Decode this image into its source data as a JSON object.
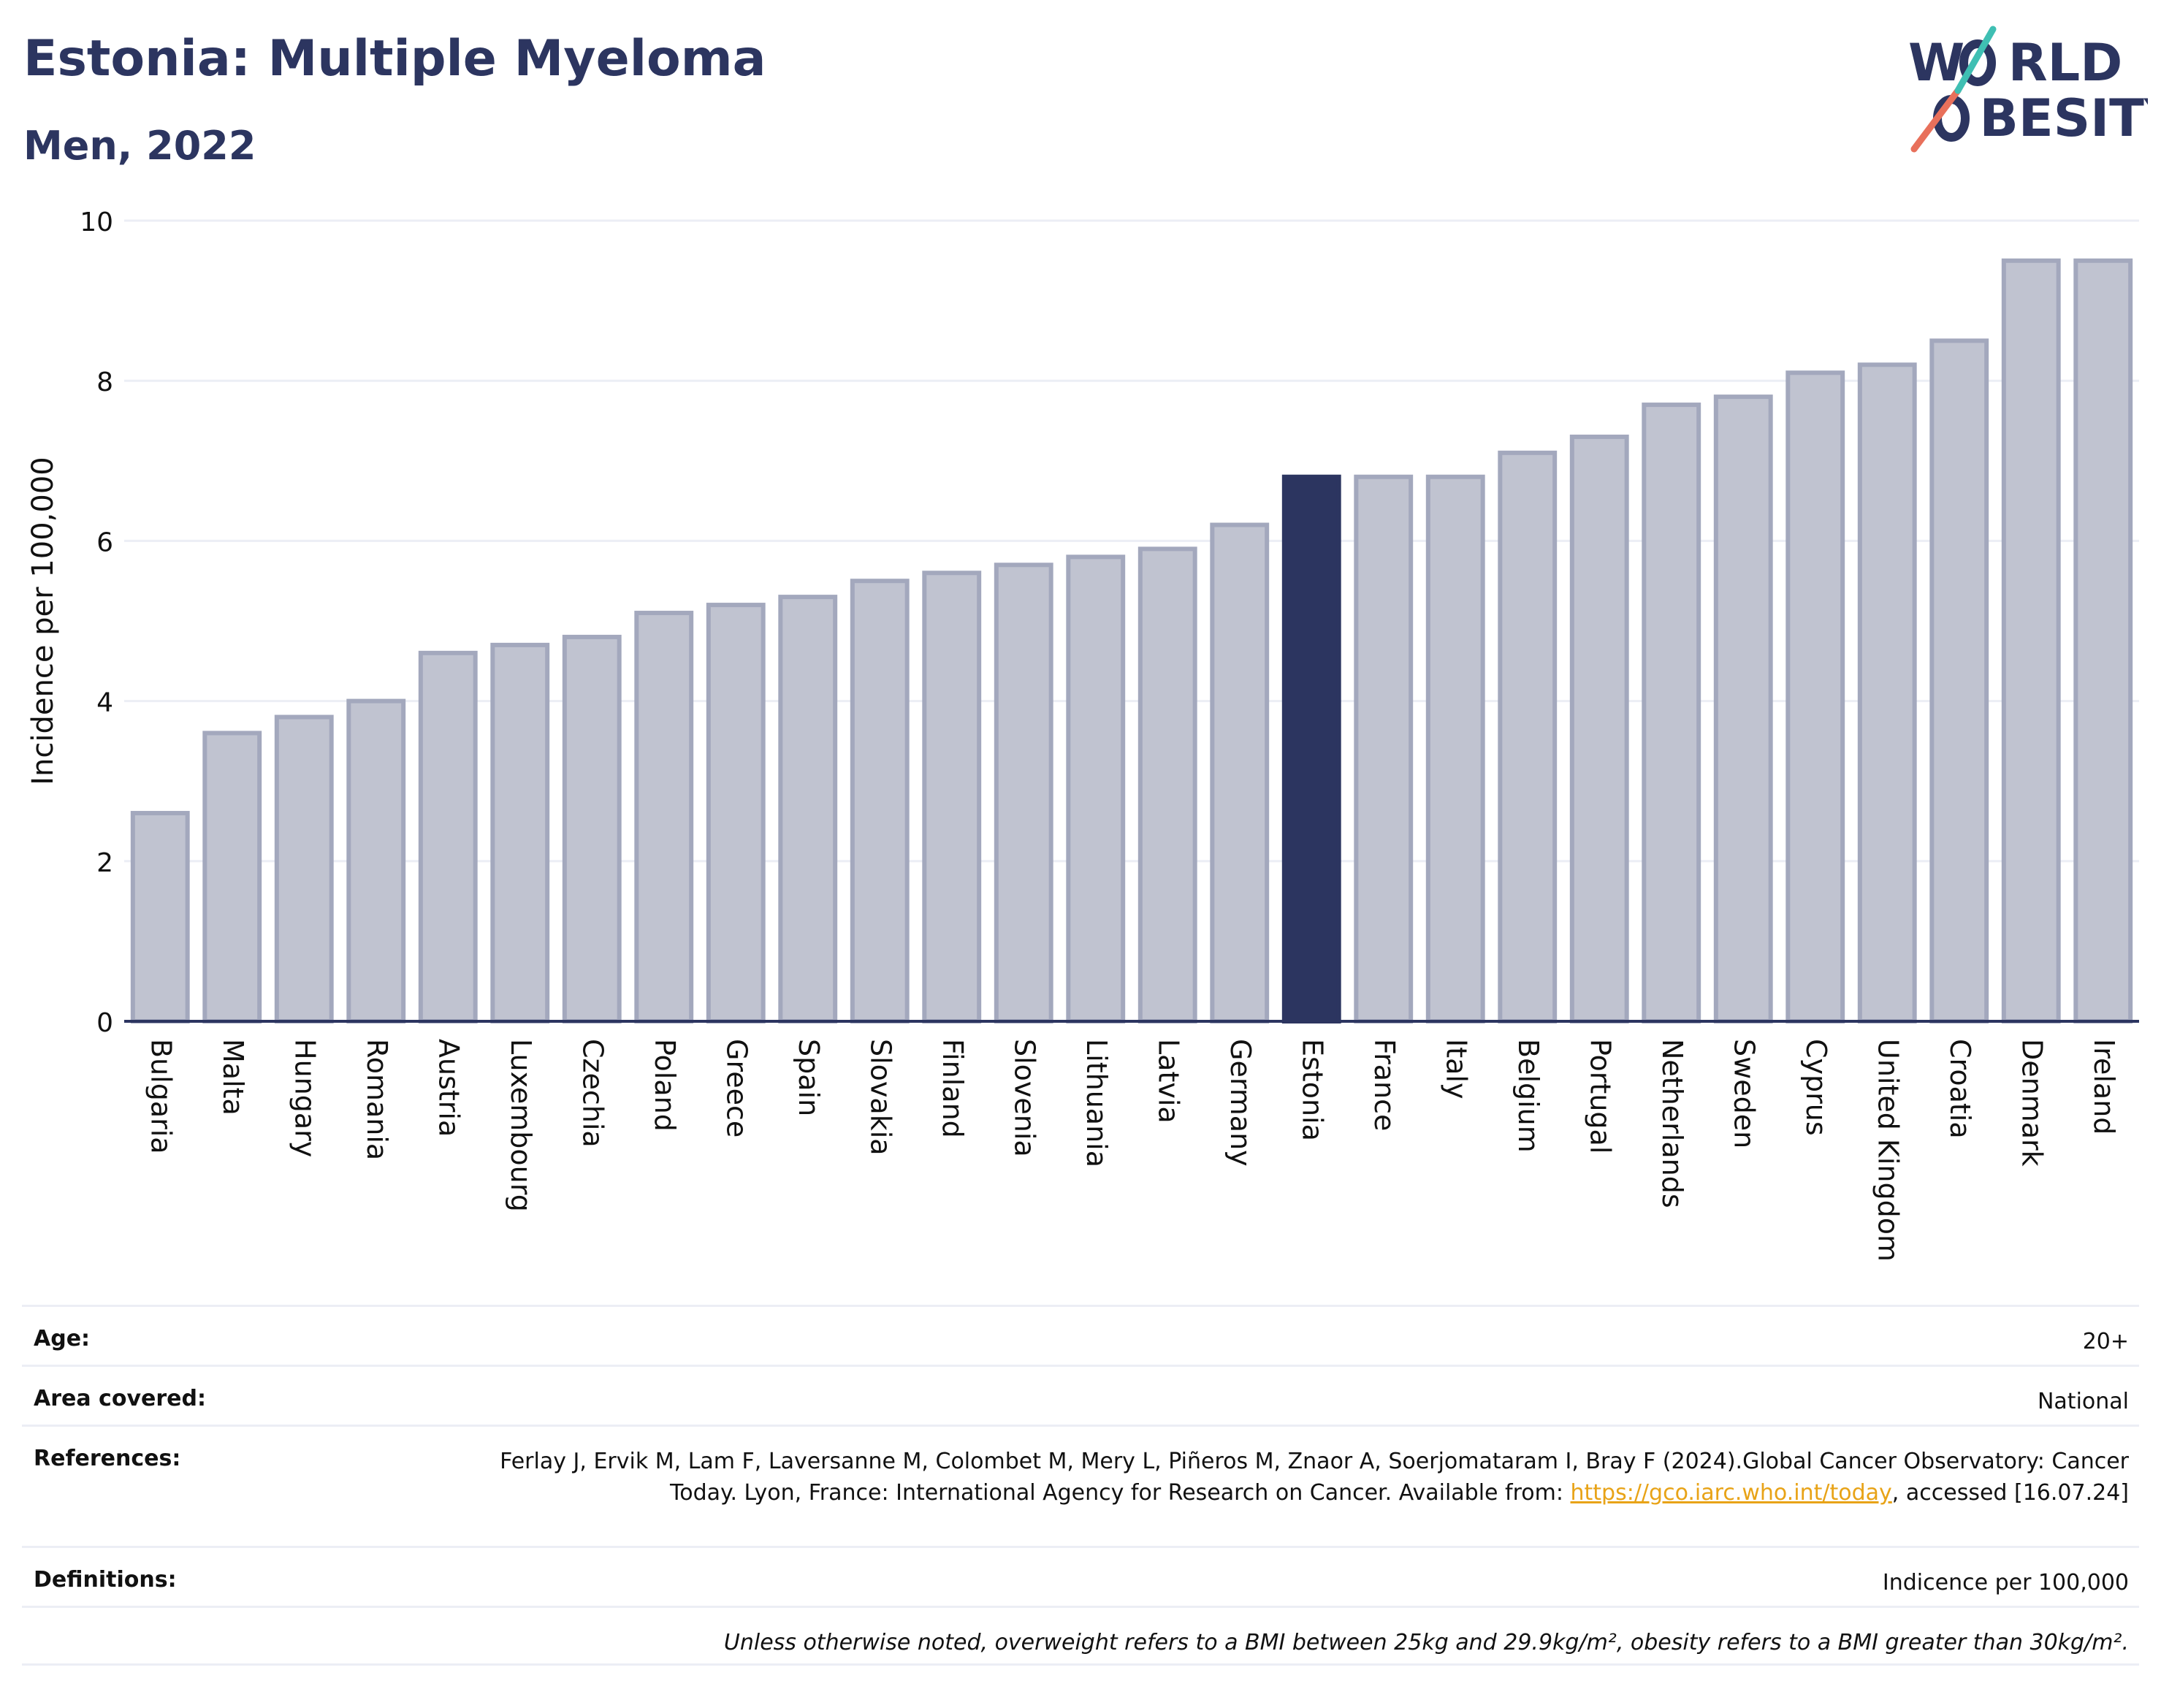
{
  "header": {
    "title": "Estonia: Multiple Myeloma",
    "subtitle": "Men, 2022"
  },
  "logo": {
    "line1_pre": "W",
    "line1_post": "RLD",
    "line2_pre": "O",
    "line2_post": "BESITY",
    "slash_colors": [
      "#e8705b",
      "#3fbfb3"
    ]
  },
  "chart_data": {
    "type": "bar",
    "title": "Estonia: Multiple Myeloma",
    "subtitle": "Men, 2022",
    "ylabel": "Incidence per 100,000",
    "xlabel": "",
    "ylim": [
      0,
      10
    ],
    "yticks": [
      0,
      2,
      4,
      6,
      8,
      10
    ],
    "grid": true,
    "highlight": "Estonia",
    "colors": {
      "default": "#c0c3d0",
      "default_border": "#a3a8bd",
      "highlight": "#2c3560",
      "axis": "#2c3560",
      "grid": "#eceef5"
    },
    "categories": [
      "Bulgaria",
      "Malta",
      "Hungary",
      "Romania",
      "Austria",
      "Luxembourg",
      "Czechia",
      "Poland",
      "Greece",
      "Spain",
      "Slovakia",
      "Finland",
      "Slovenia",
      "Lithuania",
      "Latvia",
      "Germany",
      "Estonia",
      "France",
      "Italy",
      "Belgium",
      "Portugal",
      "Netherlands",
      "Sweden",
      "Cyprus",
      "United Kingdom",
      "Croatia",
      "Denmark",
      "Ireland"
    ],
    "values": [
      2.6,
      3.6,
      3.8,
      4.0,
      4.6,
      4.7,
      4.8,
      5.1,
      5.2,
      5.3,
      5.5,
      5.6,
      5.7,
      5.8,
      5.9,
      6.2,
      6.8,
      6.8,
      6.8,
      7.1,
      7.3,
      7.7,
      7.8,
      8.1,
      8.2,
      8.5,
      9.5,
      9.5
    ]
  },
  "info": {
    "age": {
      "label": "Age:",
      "value": "20+"
    },
    "area": {
      "label": "Area covered:",
      "value": "National"
    },
    "references": {
      "label": "References:",
      "text_before": "Ferlay J, Ervik M, Lam F, Laversanne M, Colombet M, Mery L, Piñeros M, Znaor A, Soerjomataram I, Bray F (2024).Global Cancer Observatory: Cancer Today. Lyon, France: International Agency for Research on Cancer. Available from: ",
      "link": "https://gco.iarc.who.int/today",
      "text_after": ", accessed [16.07.24]"
    },
    "definitions": {
      "label": "Definitions:",
      "value": "Indicence per 100,000"
    },
    "note": "Unless otherwise noted, overweight refers to a BMI between 25kg and 29.9kg/m², obesity refers to a BMI greater than 30kg/m²."
  }
}
